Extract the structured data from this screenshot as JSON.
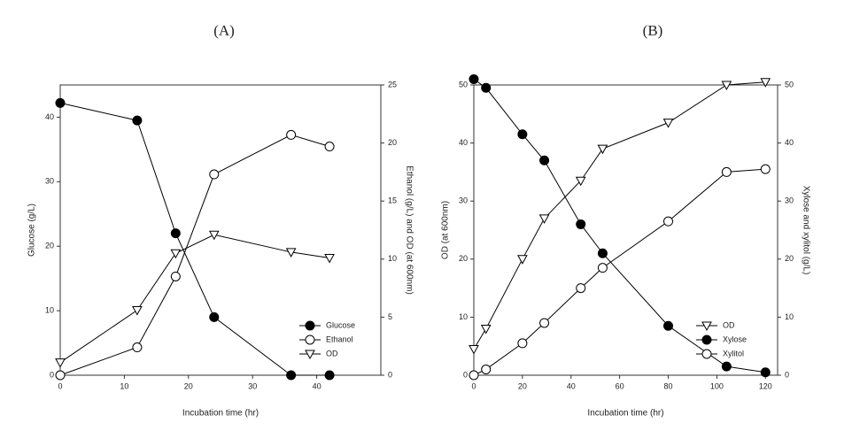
{
  "chart_data": [
    {
      "type": "line",
      "title": "(A)",
      "x_label": "Incubation time (hr)",
      "y_label": "Glucose (g/L)",
      "y2_label": "Ethanol (g/L) and OD (at 600nm)",
      "xlim": [
        0,
        50
      ],
      "xticks": [
        0,
        10,
        20,
        30,
        40
      ],
      "ylim": [
        0,
        45
      ],
      "yticks": [
        0,
        10,
        20,
        30,
        40
      ],
      "y2lim": [
        0,
        25
      ],
      "y2ticks": [
        0,
        5,
        10,
        15,
        20,
        25
      ],
      "legend": "lower right",
      "series": [
        {
          "name": "Glucose",
          "color": "#000000",
          "marker": "filled-circle",
          "x": [
            0,
            12,
            18,
            24,
            36,
            42
          ],
          "values": [
            42.2,
            39.5,
            22,
            9,
            0,
            0
          ]
        },
        {
          "name": "Ethanol",
          "color": "#000000",
          "marker": "open-circle",
          "axis": "y2",
          "x": [
            0,
            12,
            18,
            24,
            36,
            42
          ],
          "values": [
            0,
            2.4,
            8.5,
            17.3,
            20.7,
            19.7
          ]
        },
        {
          "name": "OD",
          "color": "#000000",
          "marker": "open-triangle",
          "axis": "y2",
          "x": [
            0,
            12,
            18,
            24,
            36,
            42
          ],
          "values": [
            1.1,
            5.6,
            10.5,
            12.1,
            10.6,
            10.1
          ]
        }
      ]
    },
    {
      "type": "line",
      "title": "(B)",
      "x_label": "Incubation time (hr)",
      "y_label": "OD (at 600nm)",
      "y2_label": "Xylose and xylitol (g/L)",
      "xlim": [
        0,
        125
      ],
      "xticks": [
        0,
        20,
        40,
        60,
        80,
        100,
        120
      ],
      "ylim": [
        0,
        50
      ],
      "yticks": [
        0,
        10,
        20,
        30,
        40,
        50
      ],
      "y2lim": [
        0,
        50
      ],
      "y2ticks": [
        0,
        10,
        20,
        30,
        40,
        50
      ],
      "legend": "lower right",
      "series": [
        {
          "name": "OD",
          "color": "#000000",
          "marker": "open-triangle",
          "x": [
            0,
            5,
            20,
            29,
            44,
            53,
            80,
            104,
            120
          ],
          "values": [
            4.5,
            8,
            20,
            27,
            33.5,
            39,
            43.5,
            50,
            50.5
          ]
        },
        {
          "name": "Xylose",
          "color": "#000000",
          "marker": "filled-circle",
          "axis": "y2",
          "x": [
            0,
            5,
            20,
            29,
            44,
            53,
            80,
            104,
            120
          ],
          "values": [
            51,
            49.5,
            41.5,
            37,
            26,
            21,
            8.5,
            1.5,
            0.5
          ]
        },
        {
          "name": "Xylitol",
          "color": "#000000",
          "marker": "open-circle",
          "axis": "y2",
          "x": [
            0,
            5,
            20,
            29,
            44,
            53,
            80,
            104,
            120
          ],
          "values": [
            0,
            1,
            5.5,
            9,
            15,
            18.5,
            26.5,
            35,
            35.5
          ]
        }
      ]
    }
  ]
}
